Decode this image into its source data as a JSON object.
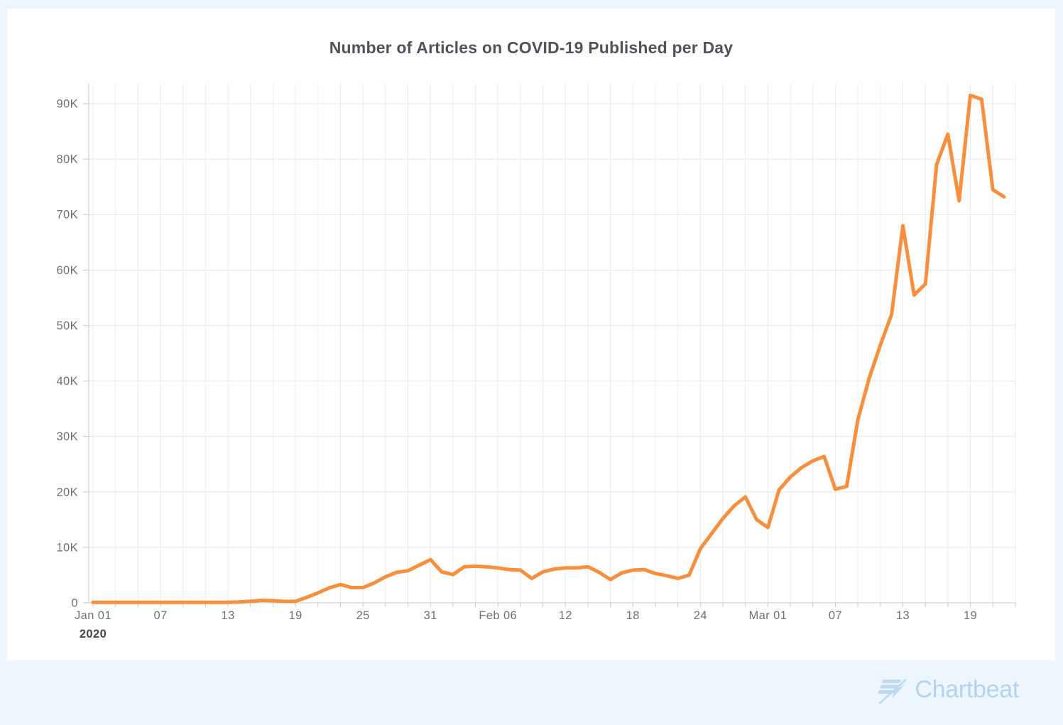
{
  "header": {
    "title": "Number of Articles on COVID-19 Published per Day"
  },
  "branding": {
    "logo_text": "Chartbeat",
    "logo_color": "#b5d3f0"
  },
  "theme": {
    "page_bg": "#edf6fd",
    "card_bg": "#ffffff",
    "line_color": "#f78f3e",
    "v_grid_color": "#ececec",
    "h_grid_color": "#e9e9e9",
    "axis_color": "#c9c9c9",
    "tick_label_color": "#70707a",
    "year_label_color": "#45454d",
    "title_color": "#52525a"
  },
  "chart_data": {
    "type": "line",
    "title": "Number of Articles on COVID-19 Published per Day",
    "series_name": "Articles published per day",
    "unit": "articles (thousands)",
    "grid": true,
    "legend": "none",
    "x_year_label": "2020",
    "x_range": [
      "Jan 01 2020",
      "Mar 22 2020"
    ],
    "ylim": [
      0,
      93.5
    ],
    "y_ticks": [
      {
        "label": "0",
        "value": 0
      },
      {
        "label": "10K",
        "value": 10
      },
      {
        "label": "20K",
        "value": 20
      },
      {
        "label": "30K",
        "value": 30
      },
      {
        "label": "40K",
        "value": 40
      },
      {
        "label": "50K",
        "value": 50
      },
      {
        "label": "60K",
        "value": 60
      },
      {
        "label": "70K",
        "value": 70
      },
      {
        "label": "80K",
        "value": 80
      },
      {
        "label": "90K",
        "value": 90
      }
    ],
    "x_ticks": [
      {
        "label": "Jan 01",
        "day": 0
      },
      {
        "label": "07",
        "day": 6
      },
      {
        "label": "13",
        "day": 12
      },
      {
        "label": "19",
        "day": 18
      },
      {
        "label": "25",
        "day": 24
      },
      {
        "label": "31",
        "day": 30
      },
      {
        "label": "Feb 06",
        "day": 36
      },
      {
        "label": "12",
        "day": 42
      },
      {
        "label": "18",
        "day": 48
      },
      {
        "label": "24",
        "day": 54
      },
      {
        "label": "Mar 01",
        "day": 60
      },
      {
        "label": "07",
        "day": 66
      },
      {
        "label": "13",
        "day": 72
      },
      {
        "label": "19",
        "day": 78
      }
    ],
    "x_grid_step_days": 2,
    "x_grid_total_days": 82,
    "dates": [
      "Jan 01",
      "Jan 02",
      "Jan 03",
      "Jan 04",
      "Jan 05",
      "Jan 06",
      "Jan 07",
      "Jan 08",
      "Jan 09",
      "Jan 10",
      "Jan 11",
      "Jan 12",
      "Jan 13",
      "Jan 14",
      "Jan 15",
      "Jan 16",
      "Jan 17",
      "Jan 18",
      "Jan 19",
      "Jan 20",
      "Jan 21",
      "Jan 22",
      "Jan 23",
      "Jan 24",
      "Jan 25",
      "Jan 26",
      "Jan 27",
      "Jan 28",
      "Jan 29",
      "Jan 30",
      "Jan 31",
      "Feb 01",
      "Feb 02",
      "Feb 03",
      "Feb 04",
      "Feb 05",
      "Feb 06",
      "Feb 07",
      "Feb 08",
      "Feb 09",
      "Feb 10",
      "Feb 11",
      "Feb 12",
      "Feb 13",
      "Feb 14",
      "Feb 15",
      "Feb 16",
      "Feb 17",
      "Feb 18",
      "Feb 19",
      "Feb 20",
      "Feb 21",
      "Feb 22",
      "Feb 23",
      "Feb 24",
      "Feb 25",
      "Feb 26",
      "Feb 27",
      "Feb 28",
      "Feb 29",
      "Mar 01",
      "Mar 02",
      "Mar 03",
      "Mar 04",
      "Mar 05",
      "Mar 06",
      "Mar 07",
      "Mar 08",
      "Mar 09",
      "Mar 10",
      "Mar 11",
      "Mar 12",
      "Mar 13",
      "Mar 14",
      "Mar 15",
      "Mar 16",
      "Mar 17",
      "Mar 18",
      "Mar 19",
      "Mar 20",
      "Mar 21",
      "Mar 22"
    ],
    "values_thousands": [
      0.1,
      0.1,
      0.1,
      0.1,
      0.1,
      0.1,
      0.1,
      0.1,
      0.1,
      0.1,
      0.1,
      0.1,
      0.1,
      0.15,
      0.3,
      0.45,
      0.4,
      0.25,
      0.3,
      1.0,
      1.8,
      2.7,
      3.3,
      2.75,
      2.75,
      3.6,
      4.7,
      5.5,
      5.8,
      6.8,
      7.8,
      5.6,
      5.1,
      6.5,
      6.6,
      6.5,
      6.3,
      6.0,
      5.9,
      4.4,
      5.6,
      6.1,
      6.3,
      6.3,
      6.5,
      5.5,
      4.2,
      5.4,
      5.9,
      6.0,
      5.3,
      4.9,
      4.4,
      5.0,
      9.8,
      12.5,
      15.2,
      17.5,
      19.1,
      15.0,
      13.6,
      20.4,
      22.7,
      24.4,
      25.6,
      26.4,
      20.5,
      21.0,
      33.0,
      40.5,
      46.5,
      52.0,
      68.0,
      55.5,
      57.5,
      79.0,
      84.5,
      72.5,
      91.5,
      90.8,
      74.5,
      73.2
    ]
  }
}
